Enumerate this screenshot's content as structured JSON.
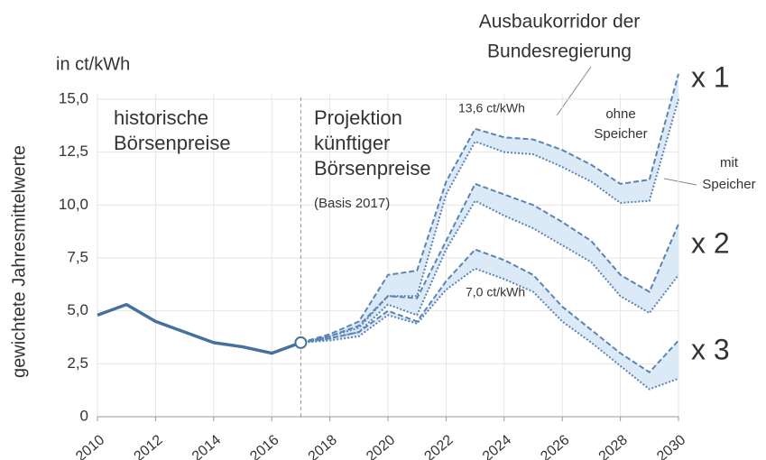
{
  "chart_data": {
    "type": "line",
    "y_label": "gewichtete Jahresmittelwerte",
    "unit_label": "in ct/kWh",
    "x": [
      2010,
      2011,
      2012,
      2013,
      2014,
      2015,
      2016,
      2017,
      2018,
      2019,
      2020,
      2021,
      2022,
      2023,
      2024,
      2025,
      2026,
      2027,
      2028,
      2029,
      2030
    ],
    "xlim": [
      2010,
      2030
    ],
    "xticks": [
      2010,
      2012,
      2014,
      2016,
      2018,
      2020,
      2022,
      2024,
      2026,
      2028,
      2030
    ],
    "ylim": [
      0,
      15
    ],
    "yticks": [
      0,
      {
        "value": 2.5,
        "label": "2,5"
      },
      {
        "value": 5,
        "label": "5,0"
      },
      {
        "value": 7.5,
        "label": "7,5"
      },
      {
        "value": 10,
        "label": "10,0"
      },
      {
        "value": 12.5,
        "label": "12,5"
      },
      {
        "value": 15,
        "label": "15,0"
      }
    ],
    "grid": true,
    "projection_start": 2017,
    "history": {
      "color": "#46719b",
      "values": [
        4.8,
        5.3,
        4.5,
        4.0,
        3.5,
        3.3,
        3.0,
        3.5,
        null,
        null,
        null,
        null,
        null,
        null,
        null,
        null,
        null,
        null,
        null,
        null,
        null
      ]
    },
    "corridor_color": "#5b84b1",
    "band_color": "#dce9f7",
    "corridors": [
      {
        "label": "x 1",
        "upper": [
          null,
          null,
          null,
          null,
          null,
          null,
          null,
          3.5,
          3.9,
          4.5,
          6.7,
          6.9,
          11.1,
          13.6,
          13.2,
          13.1,
          12.6,
          11.9,
          11.0,
          11.2,
          16.2
        ],
        "lower": [
          null,
          null,
          null,
          null,
          null,
          null,
          null,
          3.5,
          3.8,
          4.2,
          5.7,
          5.7,
          10.5,
          13.0,
          12.5,
          12.4,
          11.8,
          11.1,
          10.1,
          10.2,
          15.0
        ]
      },
      {
        "label": "x 2",
        "upper": [
          null,
          null,
          null,
          null,
          null,
          null,
          null,
          3.5,
          3.8,
          4.3,
          5.7,
          5.6,
          8.3,
          11.0,
          10.5,
          10.0,
          9.2,
          8.3,
          6.7,
          5.9,
          9.1
        ],
        "lower": [
          null,
          null,
          null,
          null,
          null,
          null,
          null,
          3.5,
          3.7,
          4.0,
          5.3,
          4.8,
          7.9,
          10.2,
          9.5,
          8.9,
          8.1,
          7.3,
          5.7,
          4.9,
          6.7
        ]
      },
      {
        "label": "x 3",
        "upper": [
          null,
          null,
          null,
          null,
          null,
          null,
          null,
          3.5,
          3.7,
          4.0,
          5.0,
          4.5,
          6.4,
          7.9,
          7.4,
          6.7,
          5.2,
          4.1,
          3.0,
          2.1,
          3.6
        ],
        "lower": [
          null,
          null,
          null,
          null,
          null,
          null,
          null,
          3.5,
          3.6,
          3.8,
          4.8,
          4.4,
          6.0,
          7.0,
          6.5,
          5.9,
          4.5,
          3.5,
          2.4,
          1.3,
          1.8
        ]
      }
    ],
    "annotations": [
      {
        "lines": [
          "historische",
          "Börsenpreise"
        ]
      },
      {
        "lines": [
          "Projektion",
          "künftiger",
          "Börsenpreise"
        ]
      },
      {
        "lines": [
          "(Basis 2017)"
        ]
      },
      {
        "lines": [
          "Ausbaukorridor der",
          "Bundesregierung"
        ]
      },
      {
        "lines": [
          "13,6 ct/kWh"
        ]
      },
      {
        "lines": [
          "7,0 ct/kWh"
        ]
      },
      {
        "lines": [
          "ohne",
          "Speicher"
        ]
      },
      {
        "lines": [
          "mit",
          "Speicher"
        ]
      }
    ]
  }
}
